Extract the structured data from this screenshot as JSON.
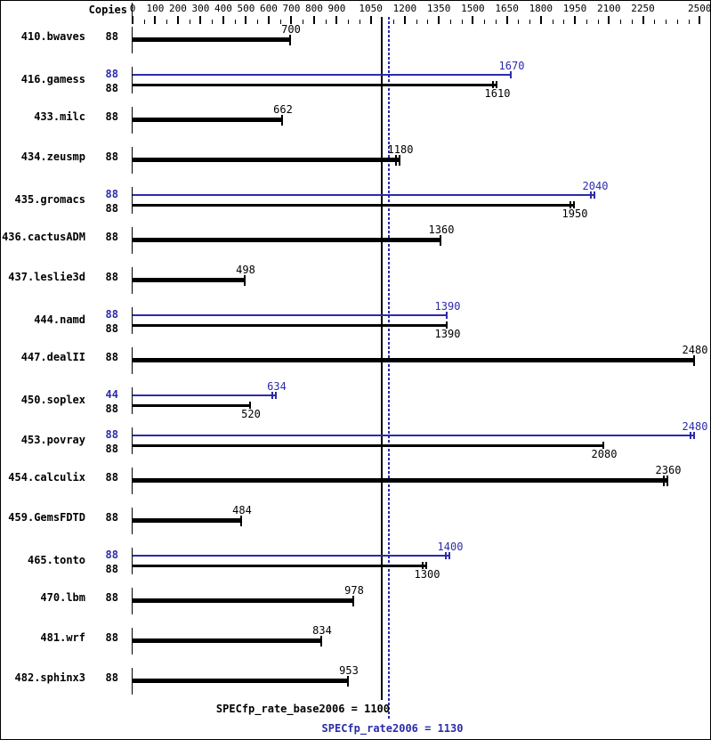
{
  "chart_data": {
    "type": "bar",
    "orientation": "horizontal",
    "copies_header": "Copies",
    "axis": {
      "min": 0,
      "max": 2550,
      "major_tick_labels": [
        "0",
        "100",
        "200",
        "300",
        "400",
        "500",
        "600",
        "700",
        "800",
        "900",
        "1050",
        "1200",
        "1350",
        "1500",
        "1650",
        "1800",
        "1950",
        "2100",
        "2250",
        "2500"
      ],
      "minor_tick_step": 50
    },
    "rows": [
      {
        "name": "410.bwaves",
        "bars": [
          {
            "kind": "base",
            "copies": "88",
            "value": 700,
            "label": "700",
            "end_ticks": 1
          }
        ]
      },
      {
        "name": "416.gamess",
        "bars": [
          {
            "kind": "peak",
            "copies": "88",
            "value": 1670,
            "label": "1670",
            "end_ticks": 1
          },
          {
            "kind": "base",
            "copies": "88",
            "value": 1610,
            "label": "1610",
            "end_ticks": 2
          }
        ]
      },
      {
        "name": "433.milc",
        "bars": [
          {
            "kind": "base",
            "copies": "88",
            "value": 662,
            "label": "662",
            "end_ticks": 1
          }
        ]
      },
      {
        "name": "434.zeusmp",
        "bars": [
          {
            "kind": "base",
            "copies": "88",
            "value": 1180,
            "label": "1180",
            "end_ticks": 2
          }
        ]
      },
      {
        "name": "435.gromacs",
        "bars": [
          {
            "kind": "peak",
            "copies": "88",
            "value": 2040,
            "label": "2040",
            "end_ticks": 2
          },
          {
            "kind": "base",
            "copies": "88",
            "value": 1950,
            "label": "1950",
            "end_ticks": 2
          }
        ]
      },
      {
        "name": "436.cactusADM",
        "bars": [
          {
            "kind": "base",
            "copies": "88",
            "value": 1360,
            "label": "1360",
            "end_ticks": 1
          }
        ]
      },
      {
        "name": "437.leslie3d",
        "bars": [
          {
            "kind": "base",
            "copies": "88",
            "value": 498,
            "label": "498",
            "end_ticks": 1
          }
        ]
      },
      {
        "name": "444.namd",
        "bars": [
          {
            "kind": "peak",
            "copies": "88",
            "value": 1390,
            "label": "1390",
            "end_ticks": 1
          },
          {
            "kind": "base",
            "copies": "88",
            "value": 1390,
            "label": "1390",
            "end_ticks": 1
          }
        ]
      },
      {
        "name": "447.dealII",
        "bars": [
          {
            "kind": "base",
            "copies": "88",
            "value": 2480,
            "label": "2480",
            "end_ticks": 1
          }
        ]
      },
      {
        "name": "450.soplex",
        "bars": [
          {
            "kind": "peak",
            "copies": "44",
            "value": 634,
            "label": "634",
            "end_ticks": 2
          },
          {
            "kind": "base",
            "copies": "88",
            "value": 520,
            "label": "520",
            "end_ticks": 1
          }
        ]
      },
      {
        "name": "453.povray",
        "bars": [
          {
            "kind": "peak",
            "copies": "88",
            "value": 2480,
            "label": "2480",
            "end_ticks": 2
          },
          {
            "kind": "base",
            "copies": "88",
            "value": 2080,
            "label": "2080",
            "end_ticks": 1
          }
        ]
      },
      {
        "name": "454.calculix",
        "bars": [
          {
            "kind": "base",
            "copies": "88",
            "value": 2360,
            "label": "2360",
            "end_ticks": 2
          }
        ]
      },
      {
        "name": "459.GemsFDTD",
        "bars": [
          {
            "kind": "base",
            "copies": "88",
            "value": 484,
            "label": "484",
            "end_ticks": 1
          }
        ]
      },
      {
        "name": "465.tonto",
        "bars": [
          {
            "kind": "peak",
            "copies": "88",
            "value": 1400,
            "label": "1400",
            "end_ticks": 2
          },
          {
            "kind": "base",
            "copies": "88",
            "value": 1300,
            "label": "1300",
            "end_ticks": 2
          }
        ]
      },
      {
        "name": "470.lbm",
        "bars": [
          {
            "kind": "base",
            "copies": "88",
            "value": 978,
            "label": "978",
            "end_ticks": 1
          }
        ]
      },
      {
        "name": "481.wrf",
        "bars": [
          {
            "kind": "base",
            "copies": "88",
            "value": 834,
            "label": "834",
            "end_ticks": 1
          }
        ]
      },
      {
        "name": "482.sphinx3",
        "bars": [
          {
            "kind": "base",
            "copies": "88",
            "value": 953,
            "label": "953",
            "end_ticks": 1
          }
        ]
      }
    ],
    "reference_lines": [
      {
        "kind": "base",
        "value": 1100,
        "style": "solid"
      },
      {
        "kind": "peak",
        "value": 1130,
        "style": "dotted"
      }
    ],
    "summary": {
      "base_text": "SPECfp_rate_base2006 = 1100",
      "peak_text": "SPECfp_rate2006 = 1130"
    }
  },
  "colors": {
    "base": "#000000",
    "peak": "#2b2bad",
    "background": "#ffffff"
  }
}
